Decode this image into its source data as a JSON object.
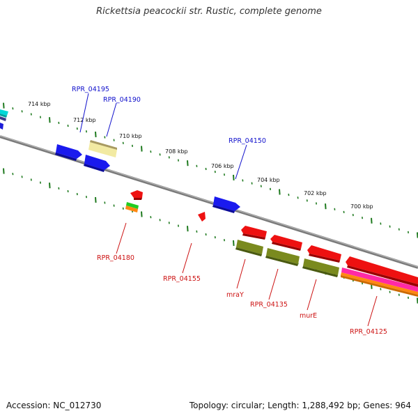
{
  "title": "Rickettsia peacockii str. Rustic, complete genome",
  "footer": {
    "accession": "Accession: NC_012730",
    "summary": "Topology: circular; Length: 1,288,492 bp; Genes: 964"
  },
  "colors": {
    "backbone": "#888888",
    "tick": "#1f7a1f",
    "forward_label": "#1010cc",
    "reverse_label": "#cc1111"
  },
  "scale_labels": [
    "714 kbp",
    "712 kbp",
    "710 kbp",
    "708 kbp",
    "706 kbp",
    "704 kbp",
    "702 kbp",
    "700 kbp"
  ],
  "forward_gene_labels": [
    "RPR_04195",
    "RPR_04190",
    "RPR_04150"
  ],
  "reverse_gene_labels": [
    "RPR_04180",
    "RPR_04155",
    "mraY",
    "RPR_04135",
    "murE",
    "RPR_04125"
  ]
}
